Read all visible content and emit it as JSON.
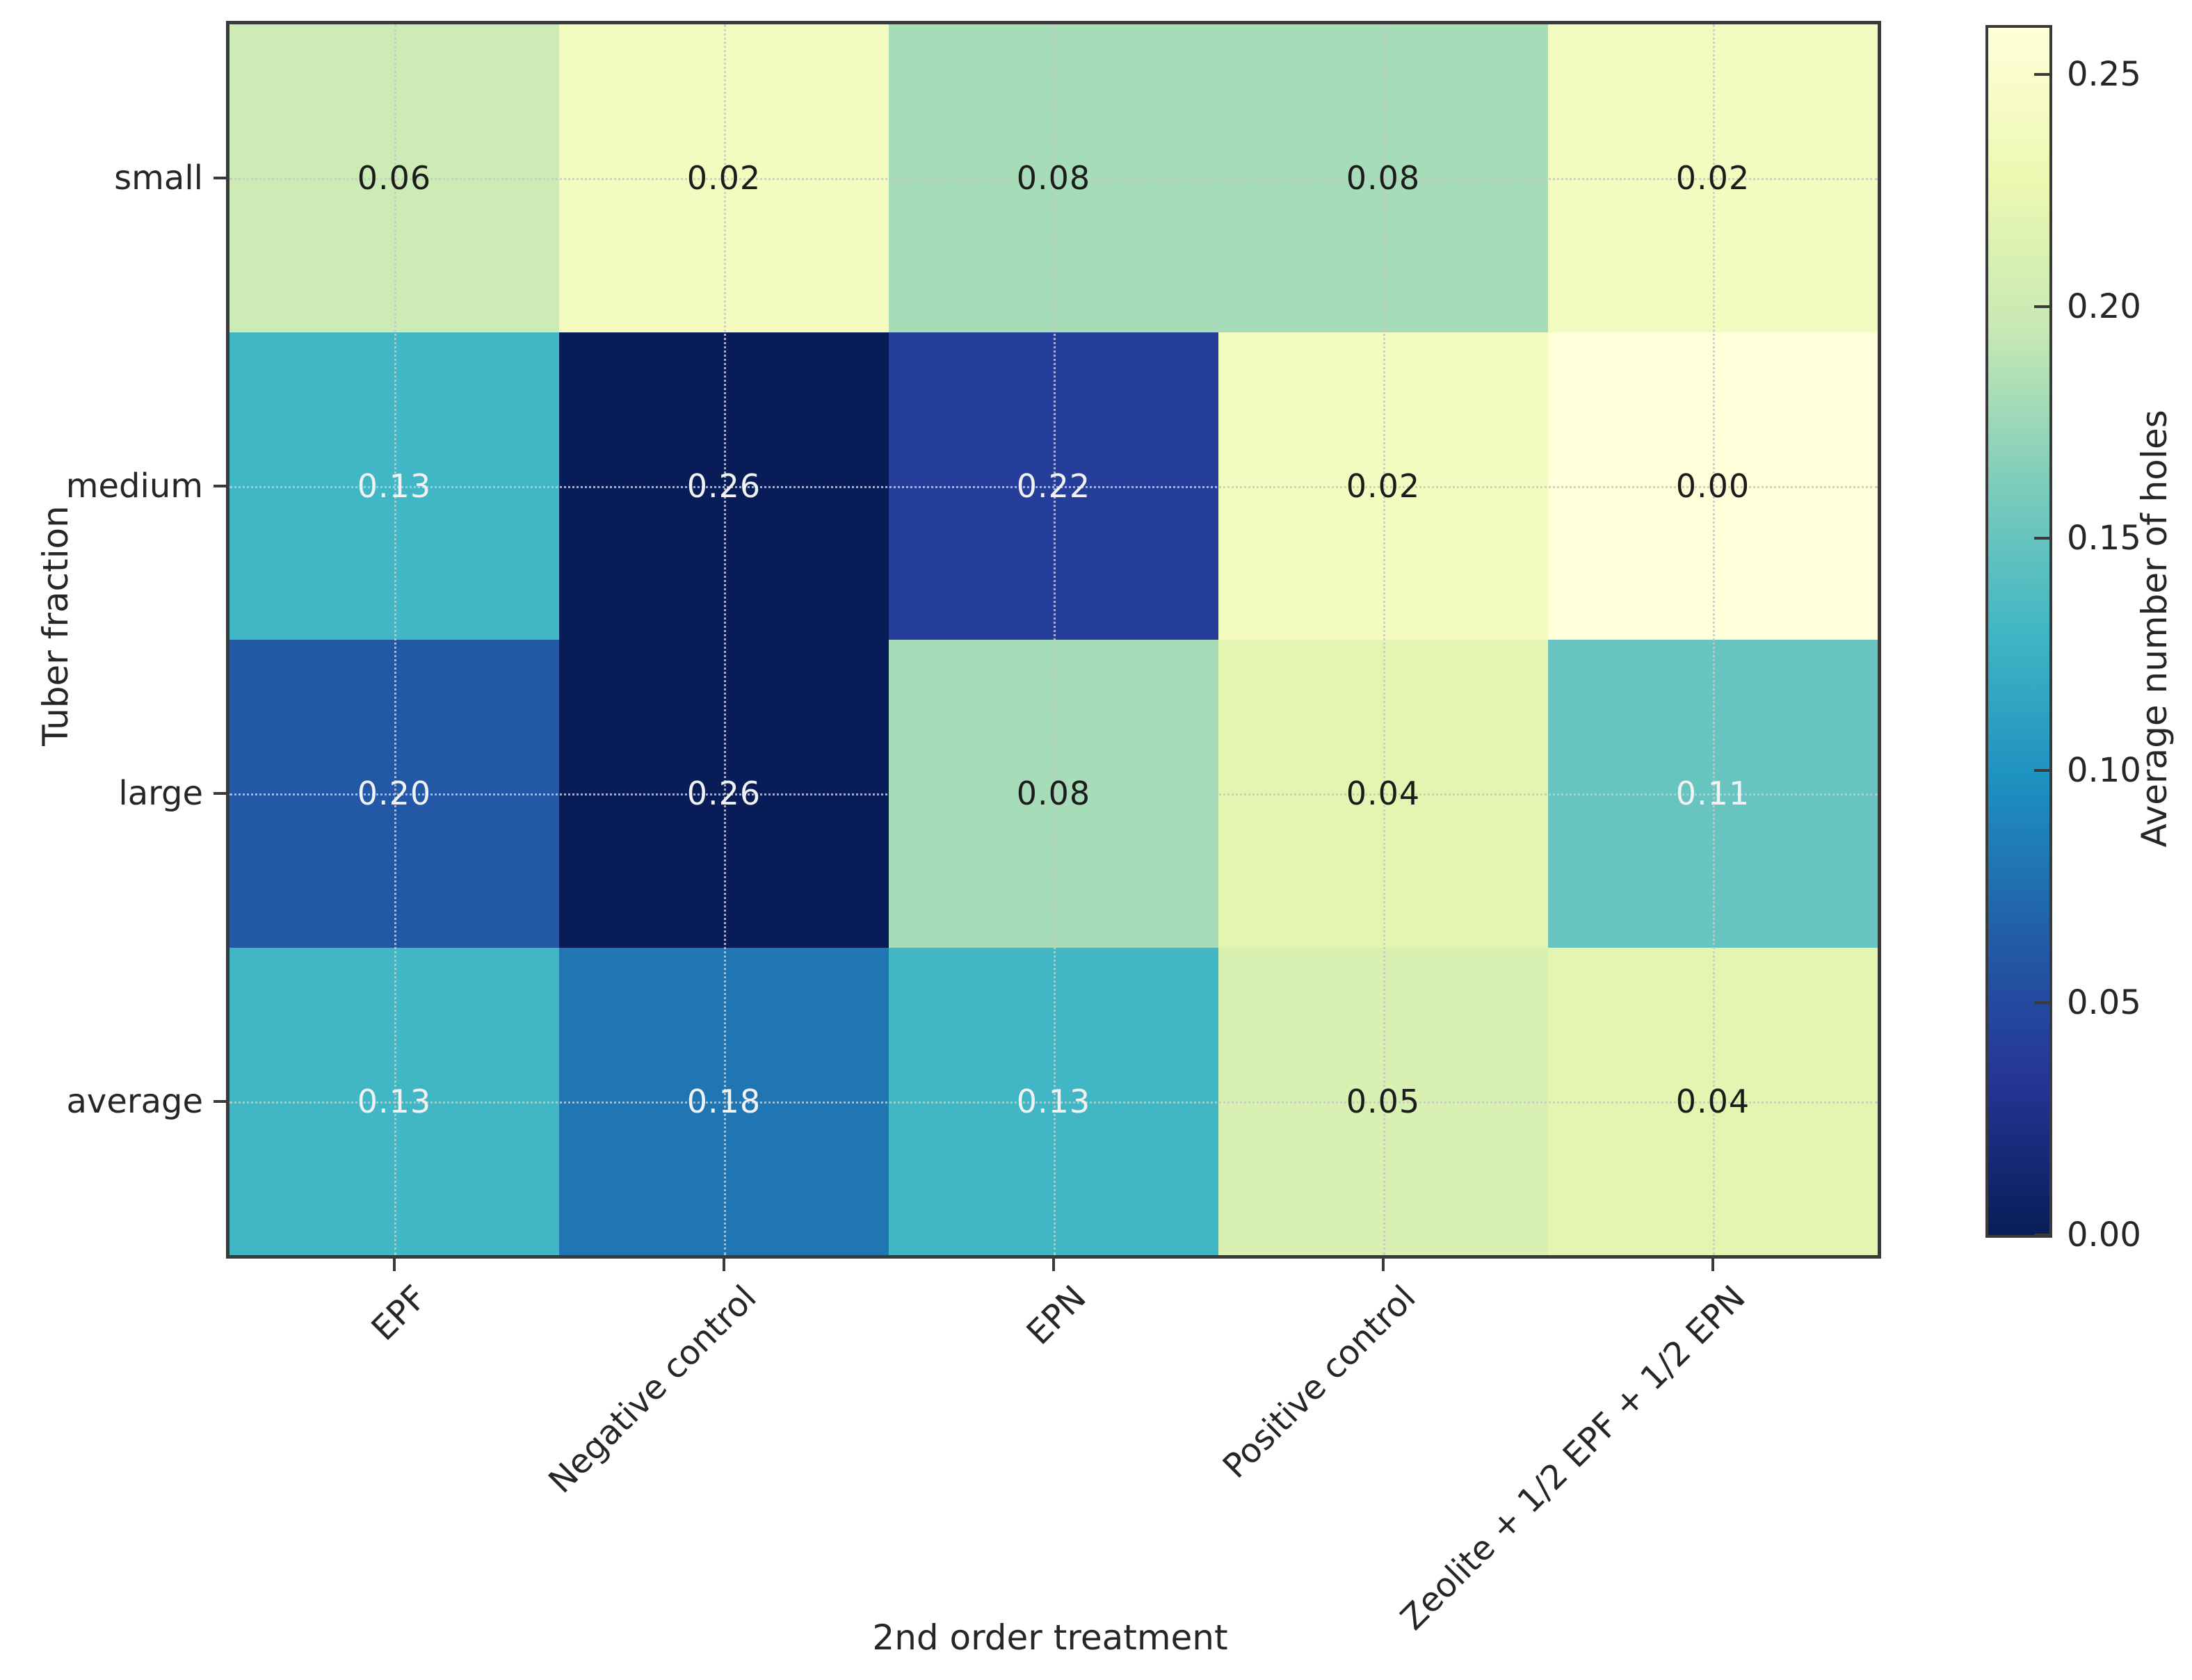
{
  "figure": {
    "background": "#ffffff",
    "text_color": "#262626"
  },
  "chart_data": {
    "type": "heatmap",
    "title": "",
    "xlabel": "2nd order treatment",
    "ylabel": "Tuber fraction",
    "colorbar_label": "Average number of holes",
    "columns": [
      "EPF",
      "Negative control",
      "EPN",
      "Positive control",
      "Zeolite + 1/2 EPF + 1/2 EPN"
    ],
    "rows": [
      "small",
      "medium",
      "large",
      "average"
    ],
    "values": [
      [
        0.06,
        0.02,
        0.08,
        0.08,
        0.02
      ],
      [
        0.13,
        0.26,
        0.22,
        0.02,
        0.0
      ],
      [
        0.2,
        0.26,
        0.08,
        0.04,
        0.11
      ],
      [
        0.13,
        0.18,
        0.13,
        0.05,
        0.04
      ]
    ],
    "value_labels": [
      [
        "0.06",
        "0.02",
        "0.08",
        "0.08",
        "0.02"
      ],
      [
        "0.13",
        "0.26",
        "0.22",
        "0.02",
        "0.00"
      ],
      [
        "0.20",
        "0.26",
        "0.08",
        "0.04",
        "0.11"
      ],
      [
        "0.13",
        "0.18",
        "0.13",
        "0.05",
        "0.04"
      ]
    ],
    "vmin": 0.0,
    "vmax": 0.26,
    "colorbar_ticks": [
      "0.25",
      "0.20",
      "0.15",
      "0.10",
      "0.05",
      "0.00"
    ],
    "colormap": "YlGnBu",
    "colormap_stops": [
      {
        "pos": 0.0,
        "color": "#ffffd9"
      },
      {
        "pos": 0.125,
        "color": "#edf8b1"
      },
      {
        "pos": 0.25,
        "color": "#c7e9b4"
      },
      {
        "pos": 0.375,
        "color": "#7fcdbb"
      },
      {
        "pos": 0.5,
        "color": "#41b6c4"
      },
      {
        "pos": 0.625,
        "color": "#1d91c0"
      },
      {
        "pos": 0.75,
        "color": "#225ea8"
      },
      {
        "pos": 0.875,
        "color": "#253494"
      },
      {
        "pos": 1.0,
        "color": "#081d58"
      }
    ],
    "grid": "dotted",
    "legend_position": "colorbar-right",
    "cell_text_light": "#f2f2f2",
    "cell_text_dark": "#1c1c1c"
  }
}
